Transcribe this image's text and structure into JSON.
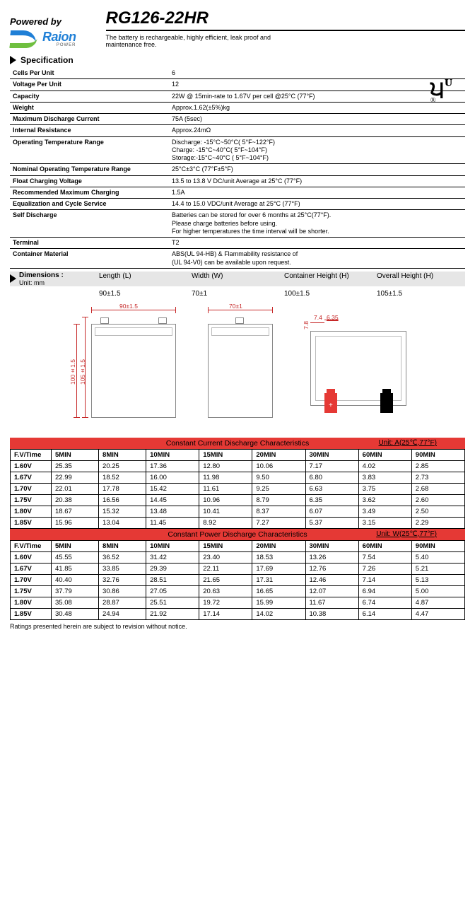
{
  "header": {
    "powered_by": "Powered by",
    "logo_name": "Raion",
    "logo_sub": "POWER",
    "logo_blue": "#1f7fd6",
    "logo_green": "#6fbf3f"
  },
  "model": {
    "title": "RG126-22HR",
    "subtitle": "The battery is rechargeable, highly efficient, leak proof and maintenance free."
  },
  "spec_section": "Specification",
  "specs": [
    {
      "k": "Cells Per Unit",
      "v": "6"
    },
    {
      "k": "Voltage Per Unit",
      "v": "12"
    },
    {
      "k": "Capacity",
      "v": "22W @ 15min-rate to 1.67V per cell @25°C (77°F)"
    },
    {
      "k": "Weight",
      "v": "Approx.1.62(±5%)kg"
    },
    {
      "k": "Maximum Discharge Current",
      "v": "75A (5sec)"
    },
    {
      "k": "Internal Resistance",
      "v": "Approx.24mΩ"
    },
    {
      "k": "Operating Temperature Range",
      "v": "Discharge: -15°C~50°C( 5°F~122°F)\nCharge: -15°C~40°C( 5°F~104°F)\nStorage:-15°C~40°C ( 5°F~104°F)"
    },
    {
      "k": "Nominal Operating Temperature Range",
      "v": "25°C±3°C (77°F±5°F)"
    },
    {
      "k": "Float Charging Voltage",
      "v": "13.5 to 13.8 V DC/unit Average at 25°C (77°F)"
    },
    {
      "k": "Recommended Maximum Charging",
      "v": "1.5A"
    },
    {
      "k": "Equalization and Cycle Service",
      "v": "14.4 to 15.0 VDC/unit Average at 25°C (77°F)"
    },
    {
      "k": "Self Discharge",
      "v": "Batteries can be stored for over 6 months at 25°C(77°F).\nPlease charge batteries before using.\nFor higher temperatures the time interval will be shorter."
    },
    {
      "k": "Terminal",
      "v": "T2"
    },
    {
      "k": "Container Material",
      "v": "ABS(UL 94-HB) & Flammability resistance of\n(UL 94-V0) can be available upon request."
    }
  ],
  "dims": {
    "label": "Dimensions :",
    "unit_label": "Unit: mm",
    "headers": [
      "Length (L)",
      "Width (W)",
      "Container Height (H)",
      "Overall Height (H)"
    ],
    "values": [
      "90±1.5",
      "70±1",
      "100±1.5",
      "105±1.5"
    ],
    "header_bg": "#e6e6e6"
  },
  "diagram": {
    "dim_color": "#c62828",
    "front_w": "90±1.5",
    "side_w": "70±1",
    "cont_h": "100±1.5",
    "overall_h": "105±1.5",
    "term_d1": "7.8",
    "term_d2": "7.4",
    "term_d3": "6.35"
  },
  "table1": {
    "title": "Constant Current Discharge Characteristics",
    "unit": "Unit: A(25℃,77°F)",
    "header_bg": "#e53935",
    "col_header": "F.V/Time",
    "cols": [
      "5MIN",
      "8MIN",
      "10MIN",
      "15MIN",
      "20MIN",
      "30MIN",
      "60MIN",
      "90MIN"
    ],
    "rows": [
      {
        "v": "1.60V",
        "d": [
          "25.35",
          "20.25",
          "17.36",
          "12.80",
          "10.06",
          "7.17",
          "4.02",
          "2.85"
        ]
      },
      {
        "v": "1.67V",
        "d": [
          "22.99",
          "18.52",
          "16.00",
          "11.98",
          "9.50",
          "6.80",
          "3.83",
          "2.73"
        ]
      },
      {
        "v": "1.70V",
        "d": [
          "22.01",
          "17.78",
          "15.42",
          "11.61",
          "9.25",
          "6.63",
          "3.75",
          "2.68"
        ]
      },
      {
        "v": "1.75V",
        "d": [
          "20.38",
          "16.56",
          "14.45",
          "10.96",
          "8.79",
          "6.35",
          "3.62",
          "2.60"
        ]
      },
      {
        "v": "1.80V",
        "d": [
          "18.67",
          "15.32",
          "13.48",
          "10.41",
          "8.37",
          "6.07",
          "3.49",
          "2.50"
        ]
      },
      {
        "v": "1.85V",
        "d": [
          "15.96",
          "13.04",
          "11.45",
          "8.92",
          "7.27",
          "5.37",
          "3.15",
          "2.29"
        ]
      }
    ]
  },
  "table2": {
    "title": "Constant Power Discharge Characteristics",
    "unit": "Unit: W(25℃,77°F)",
    "header_bg": "#e53935",
    "col_header": "F.V/Time",
    "cols": [
      "5MIN",
      "8MIN",
      "10MIN",
      "15MIN",
      "20MIN",
      "30MIN",
      "60MIN",
      "90MIN"
    ],
    "rows": [
      {
        "v": "1.60V",
        "d": [
          "45.55",
          "36.52",
          "31.42",
          "23.40",
          "18.53",
          "13.26",
          "7.54",
          "5.40"
        ]
      },
      {
        "v": "1.67V",
        "d": [
          "41.85",
          "33.85",
          "29.39",
          "22.11",
          "17.69",
          "12.76",
          "7.26",
          "5.21"
        ]
      },
      {
        "v": "1.70V",
        "d": [
          "40.40",
          "32.76",
          "28.51",
          "21.65",
          "17.31",
          "12.46",
          "7.14",
          "5.13"
        ]
      },
      {
        "v": "1.75V",
        "d": [
          "37.79",
          "30.86",
          "27.05",
          "20.63",
          "16.65",
          "12.07",
          "6.94",
          "5.00"
        ]
      },
      {
        "v": "1.80V",
        "d": [
          "35.08",
          "28.87",
          "25.51",
          "19.72",
          "15.99",
          "11.67",
          "6.74",
          "4.87"
        ]
      },
      {
        "v": "1.85V",
        "d": [
          "30.48",
          "24.94",
          "21.92",
          "17.14",
          "14.02",
          "10.38",
          "6.14",
          "4.47"
        ]
      }
    ]
  },
  "footer": "Ratings presented herein are subject to revision without notice."
}
